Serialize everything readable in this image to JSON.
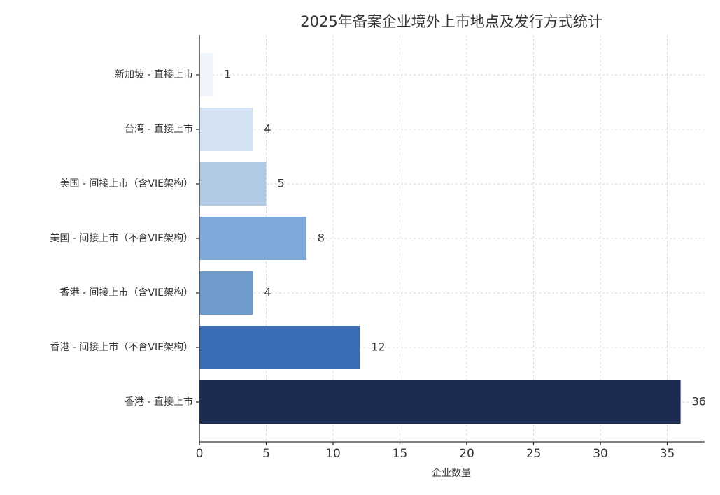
{
  "chart_data": {
    "type": "hbar",
    "title": "2025年备案企业境外上市地点及发行方式统计",
    "x_label": "企业数量",
    "categories": [
      "新加坡 - 直接上市",
      "台湾 - 直接上市",
      "美国 - 间接上市（含VIE架构）",
      "美国 - 间接上市（不含VIE架构）",
      "香港 - 间接上市（含VIE架构）",
      "香港 - 间接上市（不含VIE架构）",
      "香港 - 直接上市"
    ],
    "values": [
      1,
      4,
      5,
      8,
      4,
      12,
      36
    ],
    "colors": [
      "#f0f4fb",
      "#d3e2f2",
      "#b0c9e5",
      "#7ea8d7",
      "#6e9bca",
      "#3b6db6",
      "#1b2b52"
    ],
    "xlim": [
      0,
      37.8
    ],
    "xticks": [
      0,
      5,
      10,
      15,
      20,
      25,
      30,
      35
    ],
    "grid": true
  }
}
